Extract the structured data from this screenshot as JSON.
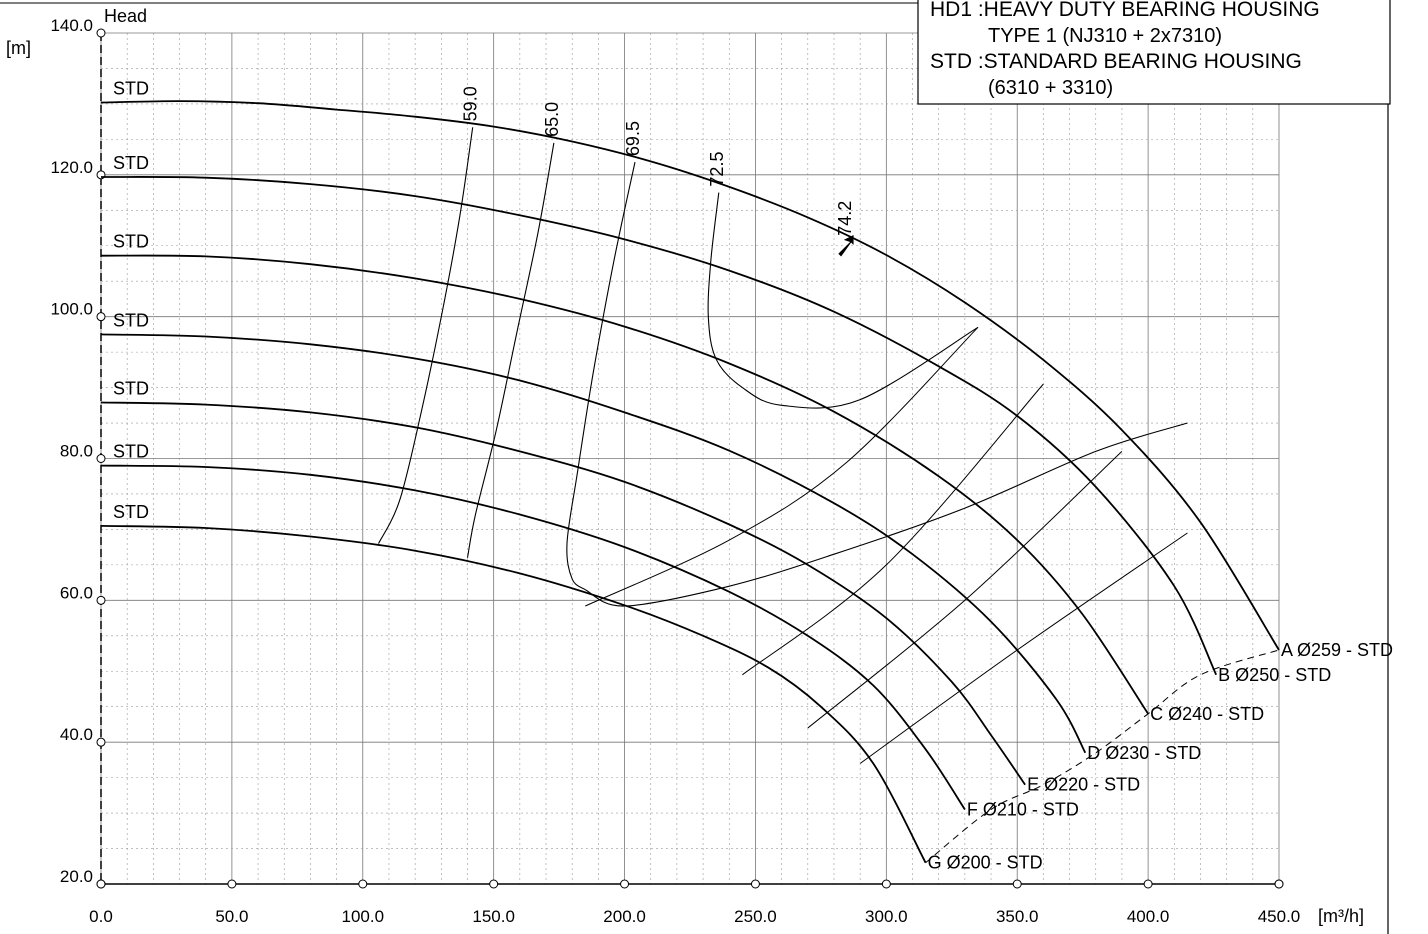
{
  "chart_data": {
    "type": "line",
    "xlabel": "[m³/h]",
    "ylabel": "Head",
    "yunit": "[m]",
    "xlim": [
      0,
      450
    ],
    "ylim": [
      20,
      140
    ],
    "x_ticks": [
      "0.0",
      "50.0",
      "100.0",
      "150.0",
      "200.0",
      "250.0",
      "300.0",
      "350.0",
      "400.0",
      "450.0"
    ],
    "y_ticks": [
      "20.0",
      "40.0",
      "60.0",
      "80.0",
      "100.0",
      "120.0",
      "140.0"
    ],
    "grid": true,
    "legend": {
      "placement": "top-right",
      "lines": [
        "HD1 :HEAVY DUTY BEARING HOUSING",
        "TYPE 1 (NJ310 + 2x7310)",
        "STD :STANDARD BEARING HOUSING",
        "(6310 + 3310)"
      ]
    },
    "series": [
      {
        "name": "A  Ø259 - STD",
        "start_label": "STD",
        "x": [
          0,
          30,
          60,
          90,
          120,
          150,
          180,
          210,
          240,
          270,
          300,
          330,
          360,
          390,
          420,
          450
        ],
        "y": [
          130.2,
          130.4,
          130.1,
          129.2,
          128.2,
          126.8,
          124.7,
          121.9,
          118.3,
          114.0,
          108.7,
          102.0,
          93.9,
          84.0,
          71.0,
          53.0
        ]
      },
      {
        "name": "B  Ø250 - STD",
        "start_label": "STD",
        "x": [
          0,
          40,
          80,
          120,
          160,
          200,
          240,
          280,
          320,
          350,
          380,
          410,
          426
        ],
        "y": [
          119.7,
          119.6,
          118.7,
          117.0,
          114.3,
          110.9,
          106.5,
          100.7,
          93.0,
          86.0,
          76.0,
          62.0,
          49.5
        ]
      },
      {
        "name": "C  Ø240 - STD",
        "start_label": "STD",
        "x": [
          0,
          40,
          80,
          120,
          160,
          200,
          240,
          280,
          320,
          350,
          375,
          400
        ],
        "y": [
          108.6,
          108.5,
          107.4,
          105.4,
          102.5,
          98.6,
          93.4,
          86.6,
          77.5,
          68.5,
          58.0,
          44.0
        ]
      },
      {
        "name": "D  Ø230 - STD",
        "start_label": "STD",
        "x": [
          0,
          40,
          80,
          120,
          160,
          200,
          240,
          280,
          310,
          340,
          365,
          376
        ],
        "y": [
          97.5,
          97.2,
          96.1,
          94.1,
          91.0,
          86.5,
          81.1,
          73.7,
          66.5,
          57.0,
          46.0,
          38.5
        ]
      },
      {
        "name": "E  Ø220 - STD",
        "start_label": "STD",
        "x": [
          0,
          40,
          80,
          120,
          160,
          200,
          240,
          270,
          300,
          325,
          340,
          353
        ],
        "y": [
          87.9,
          87.6,
          86.5,
          84.4,
          81.0,
          76.7,
          70.7,
          65.0,
          57.5,
          48.5,
          41.0,
          34.0
        ]
      },
      {
        "name": "F  Ø210 - STD",
        "start_label": "STD",
        "x": [
          0,
          40,
          80,
          120,
          160,
          200,
          240,
          270,
          295,
          315,
          330
        ],
        "y": [
          79.0,
          78.8,
          77.7,
          75.5,
          72.1,
          67.5,
          61.2,
          55.0,
          48.0,
          39.0,
          30.5
        ]
      },
      {
        "name": "G  Ø200 - STD",
        "start_label": "STD",
        "x": [
          0,
          40,
          80,
          120,
          160,
          200,
          230,
          255,
          275,
          295,
          315
        ],
        "y": [
          70.5,
          70.2,
          69.0,
          67.0,
          63.8,
          59.3,
          55.0,
          50.5,
          45.0,
          37.0,
          23.0
        ]
      }
    ],
    "efficiency_curves": [
      {
        "label": "59.0",
        "x": [
          142,
          137,
          130,
          122,
          114,
          106
        ],
        "y": [
          126.7,
          114,
          100,
          86,
          74,
          68
        ]
      },
      {
        "label": "65.0",
        "x": [
          173,
          167,
          159,
          151,
          143,
          140
        ],
        "y": [
          124.5,
          112,
          98,
          84,
          72,
          66
        ]
      },
      {
        "label": "69.5",
        "x": [
          204,
          196,
          188,
          182,
          178,
          180,
          185
        ],
        "y": [
          121.8,
          108,
          92,
          78,
          68,
          63,
          61.5
        ]
      },
      {
        "label": "72.5",
        "x": [
          236,
          233,
          232,
          235,
          245,
          260,
          290,
          335
        ],
        "y": [
          117.5,
          108,
          100,
          94,
          90,
          87.5,
          88.3,
          98.5
        ],
        "x2": [
          185,
          200,
          240,
          280,
          330,
          380,
          415
        ],
        "y2": [
          61.5,
          59.2,
          62,
          66.5,
          73,
          81,
          85
        ]
      }
    ],
    "power_curves": [
      {
        "x": [
          185,
          240,
          285,
          335
        ],
        "y": [
          59.2,
          68.5,
          79.5,
          98.5
        ]
      },
      {
        "x": [
          245,
          300,
          360
        ],
        "y": [
          49.5,
          65,
          90.5
        ]
      },
      {
        "x": [
          270,
          330,
          390
        ],
        "y": [
          42,
          60,
          81
        ]
      },
      {
        "x": [
          290,
          350,
          415
        ],
        "y": [
          37,
          53,
          69.5
        ]
      }
    ],
    "npsh_dashed": {
      "x": [
        315,
        340,
        360,
        380,
        400,
        420,
        450
      ],
      "y": [
        23,
        30.5,
        34,
        38.5,
        44,
        49.5,
        53
      ]
    },
    "bep_marker": {
      "label": "74.2",
      "x": 285,
      "y": 110
    }
  }
}
